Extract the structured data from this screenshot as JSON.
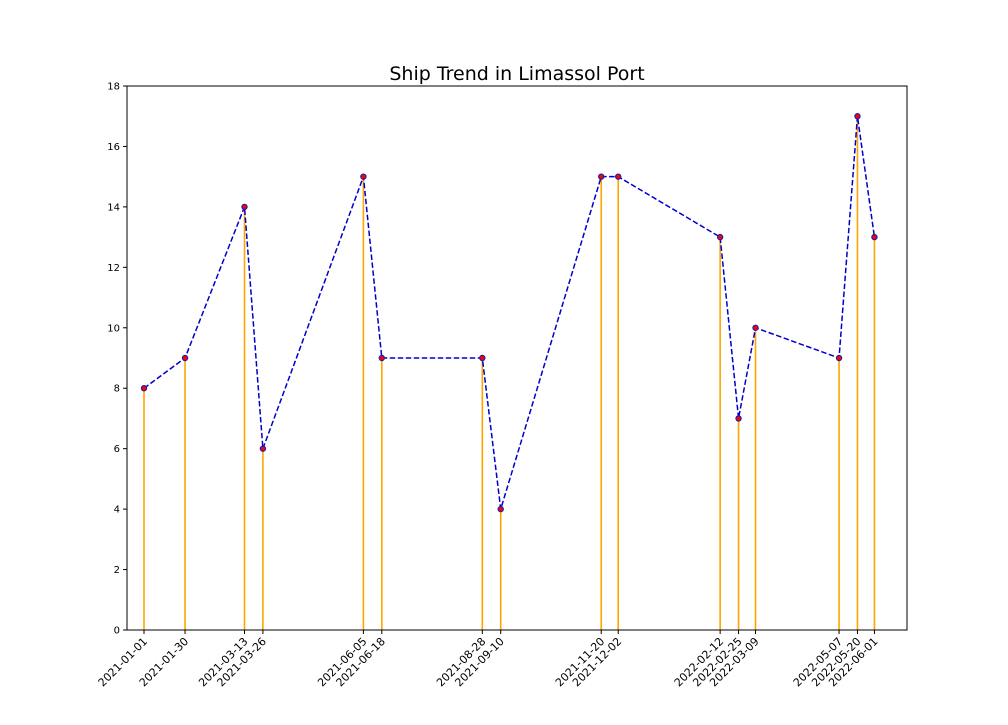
{
  "chart_data": {
    "type": "line",
    "title": "Ship Trend in Limassol Port",
    "xlabel": "",
    "ylabel": "",
    "ylim": [
      0,
      18
    ],
    "y_ticks": [
      0,
      2,
      4,
      6,
      8,
      10,
      12,
      14,
      16,
      18
    ],
    "x": [
      "2021-01-01",
      "2021-01-30",
      "2021-03-13",
      "2021-03-26",
      "2021-06-05",
      "2021-06-18",
      "2021-08-28",
      "2021-09-10",
      "2021-11-20",
      "2021-12-02",
      "2022-02-12",
      "2022-02-25",
      "2022-03-09",
      "2022-05-07",
      "2022-05-20",
      "2022-06-01"
    ],
    "x_tick_labels": [
      "2021-01-01",
      "2021-01-30",
      "2021-03-13",
      "2021-03-26",
      "2021-06-05",
      "2021-06-18",
      "2021-08-28",
      "2021-09-10",
      "2021-11-20",
      "2021-12-02",
      "2022-02-12",
      "2022-02-25",
      "2022-03-09",
      "2022-05-07",
      "2022-05-20",
      "2022-06-01"
    ],
    "xlim": [
      "2020-12-20",
      "2022-06-24"
    ],
    "series": [
      {
        "values": [
          8,
          9,
          14,
          6,
          15,
          9,
          9,
          4,
          15,
          15,
          13,
          7,
          10,
          9,
          17,
          13
        ]
      }
    ],
    "grid": false,
    "line_style": "dashed",
    "colors": {
      "line": "#0000cc",
      "stem": "#ffa500",
      "marker_face": "#ff0000",
      "marker_edge": "#1f1fa8"
    }
  }
}
